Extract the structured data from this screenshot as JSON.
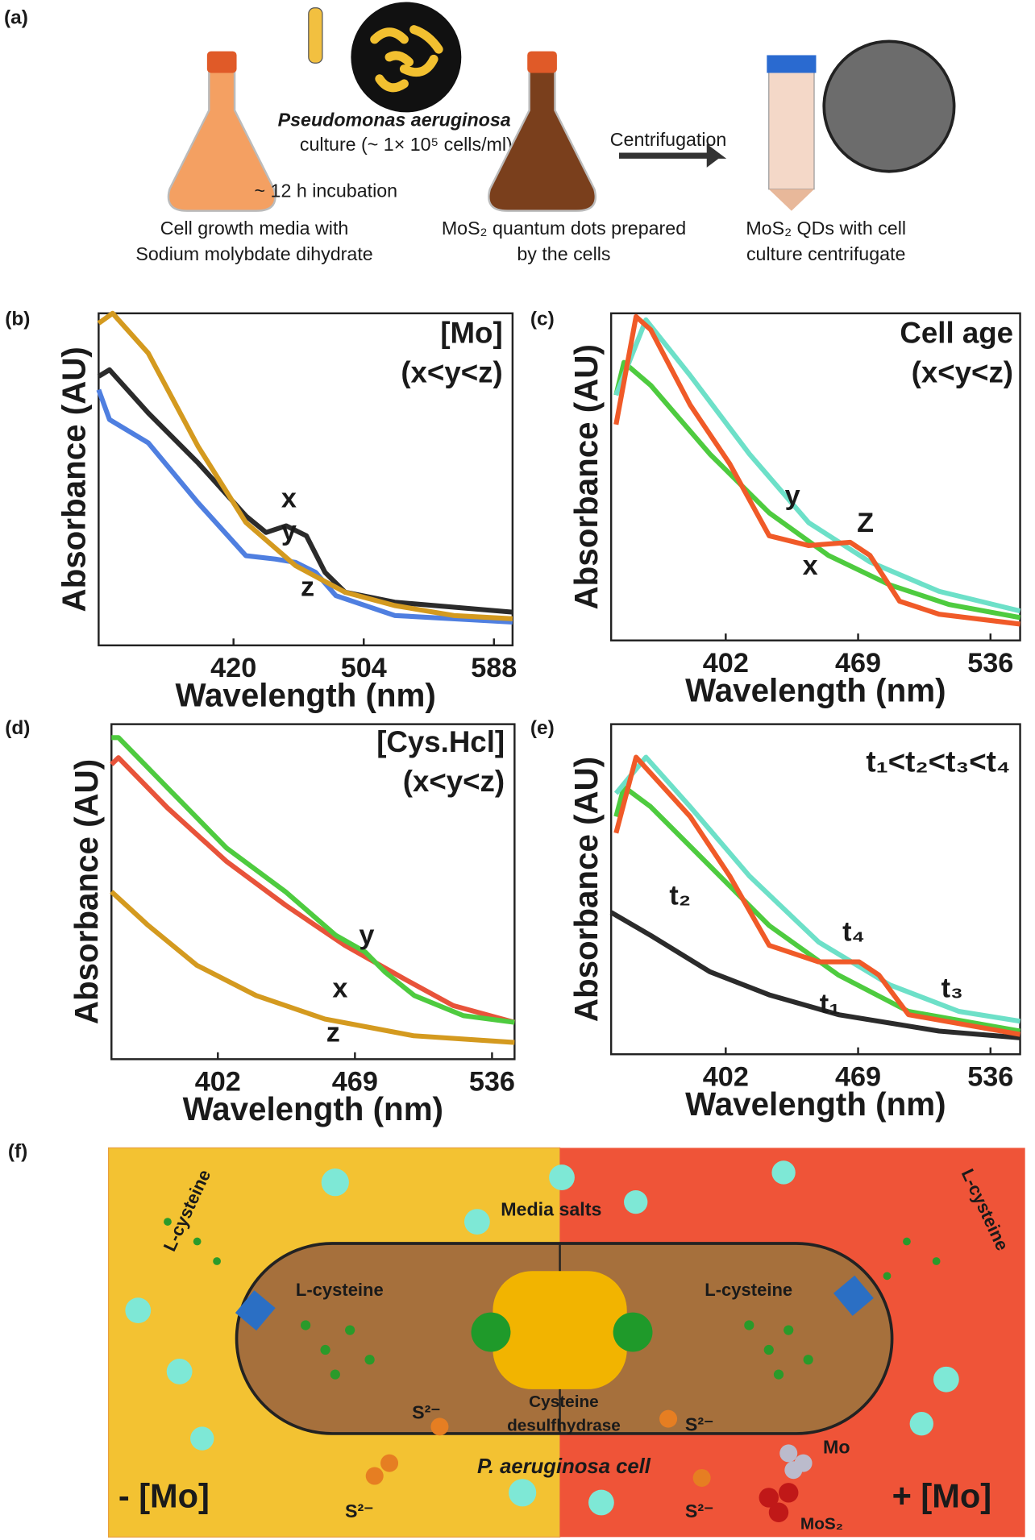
{
  "figure_a": {
    "panel_label": "(a)",
    "organism": "Pseudomonas aeruginosa",
    "culture": "culture (~ 1× 10⁵ cells/ml)",
    "incubation": "~ 12 h incubation",
    "step1": [
      "Cell growth media with",
      "Sodium molybdate dihydrate"
    ],
    "step2": [
      "MoS₂ quantum dots prepared",
      "by the cells"
    ],
    "centrifugation": "Centrifugation",
    "step3": [
      "MoS₂ QDs with cell",
      "culture centrifugate"
    ]
  },
  "chart_data": [
    {
      "type": "line",
      "panel_label": "(b)",
      "annotation": [
        "[Mo]",
        "(x<y<z)"
      ],
      "xlabel": "Wavelength (nm)",
      "ylabel": "Absorbance (AU)",
      "xlim": [
        333,
        600
      ],
      "ylim": [
        0,
        1
      ],
      "xticks": [
        420,
        504,
        588
      ],
      "series": [
        {
          "name": "x",
          "color": "#2b2b2b",
          "x": [
            333,
            340,
            365,
            397,
            428,
            441,
            454,
            467,
            479,
            492,
            524,
            600
          ],
          "values": [
            0.81,
            0.83,
            0.7,
            0.55,
            0.39,
            0.34,
            0.36,
            0.33,
            0.22,
            0.16,
            0.13,
            0.1
          ]
        },
        {
          "name": "y",
          "color": "#4f7fe0",
          "x": [
            333,
            340,
            365,
            397,
            428,
            447,
            460,
            473,
            486,
            524,
            600
          ],
          "values": [
            0.77,
            0.68,
            0.61,
            0.43,
            0.27,
            0.26,
            0.25,
            0.22,
            0.15,
            0.09,
            0.07
          ]
        },
        {
          "name": "z",
          "color": "#d49a1f",
          "x": [
            333,
            342,
            365,
            397,
            428,
            460,
            492,
            524,
            562,
            600
          ],
          "values": [
            0.97,
            1.0,
            0.88,
            0.6,
            0.37,
            0.24,
            0.16,
            0.12,
            0.09,
            0.08
          ]
        }
      ]
    },
    {
      "type": "line",
      "panel_label": "(c)",
      "annotation": [
        "Cell age",
        "(x<y<z)"
      ],
      "xlabel": "Wavelength (nm)",
      "ylabel": "Absorbance (AU)",
      "xlim": [
        344,
        551
      ],
      "ylim": [
        0,
        1
      ],
      "xticks": [
        402,
        469,
        536
      ],
      "series": [
        {
          "name": "x",
          "color": "#4ecb3f",
          "x": [
            346.5,
            350.5,
            364,
            394,
            424,
            454,
            485,
            515,
            551
          ],
          "values": [
            0.75,
            0.85,
            0.78,
            0.57,
            0.39,
            0.26,
            0.17,
            0.11,
            0.07
          ]
        },
        {
          "name": "y",
          "color": "#6de0c8",
          "x": [
            346.5,
            361.6,
            384,
            414,
            444,
            475,
            510,
            551
          ],
          "values": [
            0.75,
            0.98,
            0.81,
            0.57,
            0.36,
            0.24,
            0.15,
            0.09
          ]
        },
        {
          "name": "Z",
          "color": "#f05a28",
          "x": [
            346.5,
            356.6,
            364,
            384,
            404,
            424,
            444,
            465,
            475,
            490,
            510,
            551
          ],
          "values": [
            0.66,
            0.99,
            0.95,
            0.72,
            0.54,
            0.32,
            0.29,
            0.3,
            0.26,
            0.12,
            0.08,
            0.05
          ]
        }
      ]
    },
    {
      "type": "line",
      "panel_label": "(d)",
      "annotation": [
        "[Cys.Hcl]",
        "(x<y<z)"
      ],
      "xlabel": "Wavelength (nm)",
      "ylabel": "Absorbance (AU)",
      "xlim": [
        350,
        547
      ],
      "ylim": [
        0,
        1
      ],
      "xticks": [
        402,
        469,
        536
      ],
      "series": [
        {
          "name": "x",
          "color": "#e8533a",
          "x": [
            350,
            353.4,
            377.4,
            406.3,
            435,
            464,
            493,
            517,
            547
          ],
          "values": [
            0.88,
            0.9,
            0.75,
            0.59,
            0.46,
            0.34,
            0.24,
            0.16,
            0.11
          ]
        },
        {
          "name": "y",
          "color": "#4ecb3f",
          "x": [
            350,
            353.4,
            377.4,
            406.3,
            435,
            459.6,
            474,
            483.7,
            498,
            522,
            547
          ],
          "values": [
            0.96,
            0.96,
            0.81,
            0.63,
            0.5,
            0.37,
            0.32,
            0.26,
            0.19,
            0.13,
            0.11
          ]
        },
        {
          "name": "z",
          "color": "#d49a1f",
          "x": [
            350,
            367.8,
            391.8,
            420.7,
            454.3,
            497.6,
            547
          ],
          "values": [
            0.5,
            0.4,
            0.28,
            0.19,
            0.12,
            0.07,
            0.05
          ]
        }
      ]
    },
    {
      "type": "line",
      "panel_label": "(e)",
      "annotation": [
        "t₁<t₂<t₃<t₄"
      ],
      "xlabel": "Wavelength (nm)",
      "ylabel": "Absorbance (AU)",
      "xlim": [
        344,
        551
      ],
      "ylim": [
        0,
        1
      ],
      "xticks": [
        402,
        469,
        536
      ],
      "series": [
        {
          "name": "t₁",
          "color": "#2b2b2b",
          "x": [
            344,
            364,
            394,
            424,
            459,
            510,
            551
          ],
          "values": [
            0.43,
            0.36,
            0.25,
            0.18,
            0.12,
            0.07,
            0.05
          ]
        },
        {
          "name": "t₂",
          "color": "#4ecb3f",
          "x": [
            346.5,
            350.5,
            364,
            394,
            424,
            459,
            494.5,
            551
          ],
          "values": [
            0.72,
            0.81,
            0.75,
            0.57,
            0.39,
            0.24,
            0.13,
            0.07
          ]
        },
        {
          "name": "t₃",
          "color": "#6de0c8",
          "x": [
            346.5,
            361.6,
            384,
            414,
            449,
            485,
            520,
            551
          ],
          "values": [
            0.79,
            0.9,
            0.75,
            0.54,
            0.34,
            0.21,
            0.13,
            0.1
          ]
        },
        {
          "name": "t₄",
          "color": "#f05a28",
          "x": [
            346.5,
            356.6,
            384,
            404,
            424,
            449,
            469.5,
            479.5,
            494.5,
            551
          ],
          "values": [
            0.67,
            0.9,
            0.72,
            0.54,
            0.33,
            0.28,
            0.28,
            0.24,
            0.12,
            0.06
          ]
        }
      ]
    }
  ],
  "figure_f": {
    "panel_label": "(f)",
    "l_cysteine": [
      "L-cysteine",
      "L-cysteine",
      "L-cysteine",
      "L-cysteine"
    ],
    "media_salts": "Media salts",
    "sulfide": [
      "S²⁻",
      "S²⁻",
      "S²⁻"
    ],
    "enzyme": [
      "Cysteine",
      "desulfhydrase"
    ],
    "cell": "P. aeruginosa cell",
    "mo": "Mo",
    "mos2": "MoS₂",
    "minus_mo": "- [Mo]",
    "plus_mo": "+ [Mo]"
  }
}
